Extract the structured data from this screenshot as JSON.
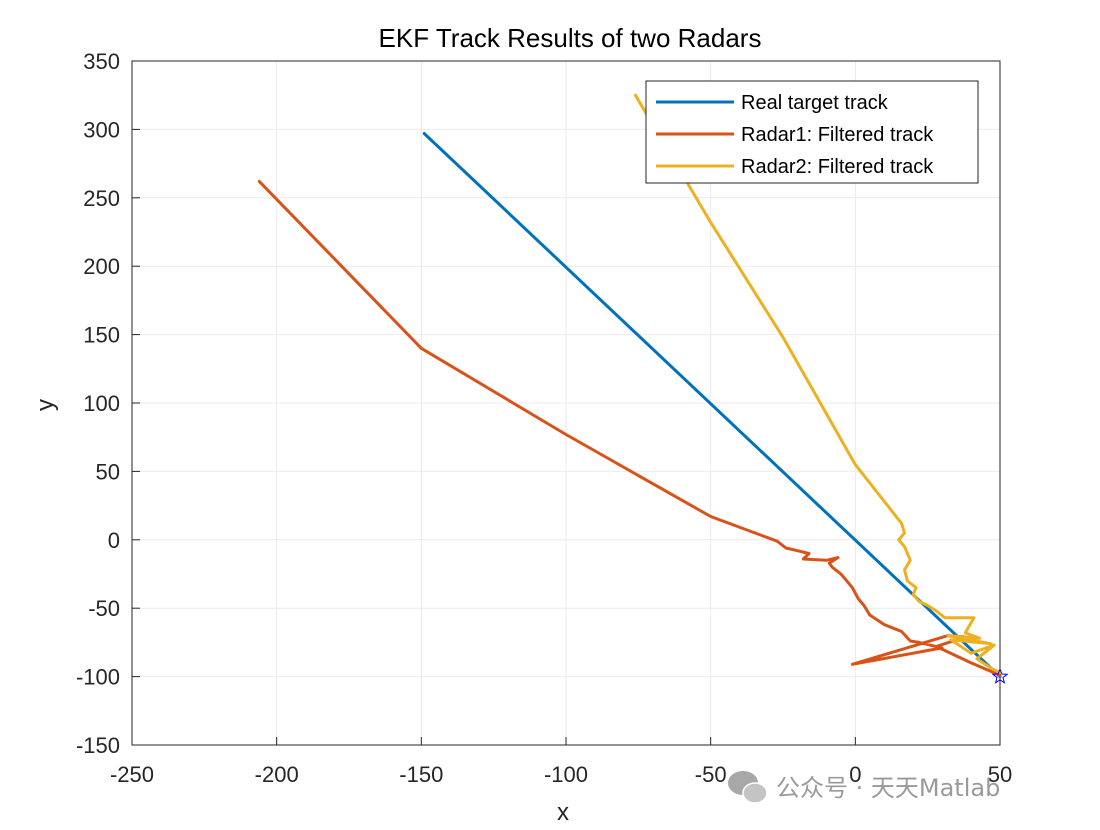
{
  "chart_data": {
    "type": "line",
    "title": "EKF Track Results of two Radars",
    "xlabel": "x",
    "ylabel": "y",
    "xlim": [
      -250,
      50
    ],
    "ylim": [
      -150,
      350
    ],
    "xticks": [
      -250,
      -200,
      -150,
      -100,
      -50,
      0,
      50
    ],
    "yticks": [
      -150,
      -100,
      -50,
      0,
      50,
      100,
      150,
      200,
      250,
      300,
      350
    ],
    "grid": true,
    "legend_position": "top-right",
    "series": [
      {
        "name": "Real target track",
        "color": "#0072BD",
        "x": [
          50,
          -149
        ],
        "y": [
          -100,
          297
        ]
      },
      {
        "name": "Radar1: Filtered track",
        "color": "#D95319",
        "x": [
          50,
          40,
          28,
          38,
          32,
          -1,
          30,
          22,
          19,
          16,
          10,
          5,
          3,
          1,
          -1,
          -3,
          -5,
          -8,
          -9,
          -6,
          -10,
          -18,
          -16,
          -20,
          -24,
          -27,
          -50,
          -100,
          -150,
          -206
        ],
        "y": [
          -99,
          -90,
          -78,
          -71,
          -70,
          -91,
          -79,
          -75,
          -74,
          -67,
          -62,
          -55,
          -48,
          -43,
          -35,
          -30,
          -25,
          -20,
          -17,
          -13,
          -15,
          -14,
          -10,
          -8,
          -6,
          -1,
          17,
          77,
          140,
          262
        ],
        "end_marker": {
          "label": "star",
          "x": 50,
          "y": -100
        }
      },
      {
        "name": "Radar2: Filtered track",
        "color": "#EDB120",
        "x": [
          50,
          47,
          42,
          48,
          40,
          33,
          47,
          32,
          43,
          38,
          41,
          31,
          28,
          25,
          22,
          20,
          21,
          18,
          17,
          19,
          17,
          15,
          17,
          16,
          0,
          -25,
          -50,
          -76
        ],
        "y": [
          -97,
          -94,
          -87,
          -77,
          -83,
          -73,
          -76,
          -70,
          -72,
          -68,
          -57,
          -57,
          -52,
          -48,
          -45,
          -40,
          -35,
          -30,
          -22,
          -15,
          -5,
          0,
          5,
          12,
          55,
          148,
          232,
          325
        ]
      }
    ],
    "watermark": "公众号 · 天天Matlab"
  }
}
